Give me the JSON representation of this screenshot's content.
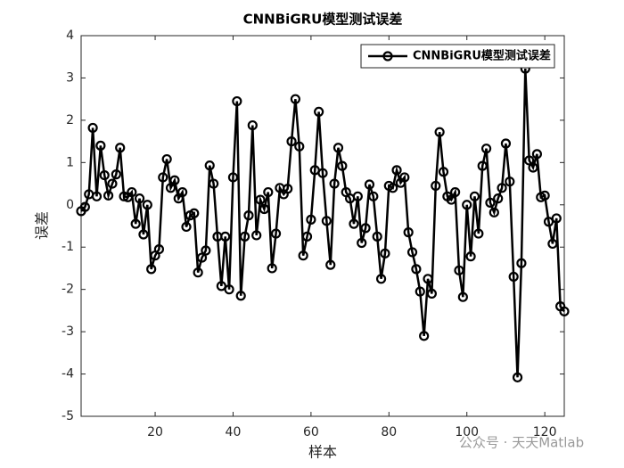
{
  "chart_data": {
    "type": "line",
    "title": "CNNBiGRU模型测试误差",
    "x_label": "样本",
    "y_label": "误差",
    "series": [
      {
        "name": "CNNBiGRU模型测试误差",
        "color": "#000000",
        "x": [
          1,
          2,
          3,
          4,
          5,
          6,
          7,
          8,
          9,
          10,
          11,
          12,
          13,
          14,
          15,
          16,
          17,
          18,
          19,
          20,
          21,
          22,
          23,
          24,
          25,
          26,
          27,
          28,
          29,
          30,
          31,
          32,
          33,
          34,
          35,
          36,
          37,
          38,
          39,
          40,
          41,
          42,
          43,
          44,
          45,
          46,
          47,
          48,
          49,
          50,
          51,
          52,
          53,
          54,
          55,
          56,
          57,
          58,
          59,
          60,
          61,
          62,
          63,
          64,
          65,
          66,
          67,
          68,
          69,
          70,
          71,
          72,
          73,
          74,
          75,
          76,
          77,
          78,
          79,
          80,
          81,
          82,
          83,
          84,
          85,
          86,
          87,
          88,
          89,
          90,
          91,
          92,
          93,
          94,
          95,
          96,
          97,
          98,
          99,
          100,
          101,
          102,
          103,
          104,
          105,
          106,
          107,
          108,
          109,
          110,
          111,
          112,
          113,
          114,
          115,
          116,
          117,
          118,
          119,
          120,
          121,
          122,
          123,
          124,
          125
        ],
        "values": [
          -0.15,
          -0.05,
          0.25,
          1.82,
          0.2,
          1.4,
          0.7,
          0.22,
          0.5,
          0.72,
          1.35,
          0.2,
          0.18,
          0.3,
          -0.45,
          0.15,
          -0.7,
          0.0,
          -1.52,
          -1.2,
          -1.05,
          0.65,
          1.08,
          0.4,
          0.58,
          0.15,
          0.3,
          -0.52,
          -0.25,
          -0.2,
          -1.6,
          -1.25,
          -1.08,
          0.93,
          0.5,
          -0.75,
          -1.92,
          -0.75,
          -2.0,
          0.65,
          2.45,
          -2.15,
          -0.75,
          -0.25,
          1.88,
          -0.72,
          0.12,
          -0.1,
          0.3,
          -1.5,
          -0.68,
          0.4,
          0.25,
          0.38,
          1.5,
          2.5,
          1.38,
          -1.2,
          -0.75,
          -0.35,
          0.82,
          2.2,
          0.75,
          -0.38,
          -1.42,
          0.5,
          1.35,
          0.92,
          0.3,
          0.15,
          -0.45,
          0.2,
          -0.9,
          -0.55,
          0.48,
          0.2,
          -0.75,
          -1.75,
          -1.15,
          0.45,
          0.4,
          0.82,
          0.52,
          0.65,
          -0.65,
          -1.12,
          -1.52,
          -2.05,
          -3.1,
          -1.75,
          -2.1,
          0.45,
          1.72,
          0.78,
          0.2,
          0.12,
          0.3,
          -1.55,
          -2.18,
          0.0,
          -1.22,
          0.2,
          -0.68,
          0.92,
          1.33,
          0.05,
          -0.18,
          0.15,
          0.4,
          1.45,
          0.55,
          -1.7,
          -4.08,
          -1.38,
          3.22,
          1.05,
          0.88,
          1.2,
          0.18,
          0.22,
          -0.4,
          -0.92,
          -0.32,
          -2.4,
          -2.52
        ]
      }
    ],
    "xlim": [
      1,
      125
    ],
    "xticks": [
      20,
      40,
      60,
      80,
      100,
      120
    ],
    "ylim": [
      -5,
      4
    ],
    "yticks": [
      -5,
      -4,
      -3,
      -2,
      -1,
      0,
      1,
      2,
      3,
      4
    ],
    "legend": "upper right",
    "grid": false
  },
  "watermark": "公众号 · 天天Matlab"
}
